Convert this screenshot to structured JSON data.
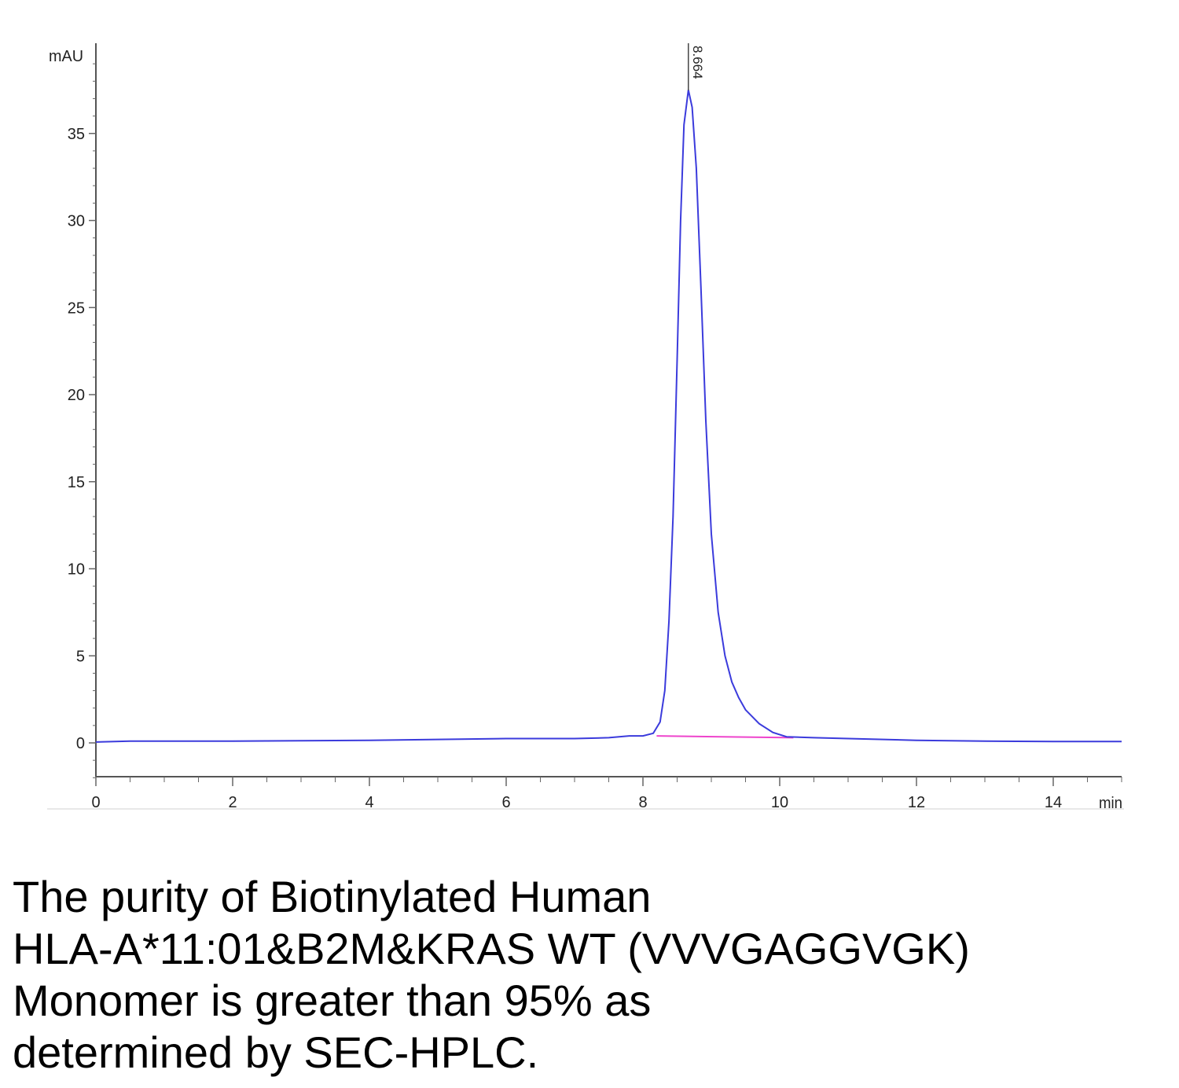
{
  "chart_data": {
    "type": "line",
    "ylabel": "mAU",
    "xlabel": "min",
    "xlim": [
      0,
      15
    ],
    "ylim": [
      -2,
      40
    ],
    "x_ticks": [
      0,
      2,
      4,
      6,
      8,
      10,
      12,
      14
    ],
    "y_ticks": [
      0,
      5,
      10,
      15,
      20,
      25,
      30,
      35
    ],
    "grid": false,
    "series": [
      {
        "color": "#3b3bdc",
        "points": [
          [
            0.0,
            0.05
          ],
          [
            0.5,
            0.1
          ],
          [
            1.0,
            0.1
          ],
          [
            2.0,
            0.1
          ],
          [
            3.0,
            0.12
          ],
          [
            4.0,
            0.15
          ],
          [
            5.0,
            0.2
          ],
          [
            6.0,
            0.25
          ],
          [
            7.0,
            0.25
          ],
          [
            7.5,
            0.3
          ],
          [
            7.8,
            0.4
          ],
          [
            8.0,
            0.4
          ],
          [
            8.15,
            0.55
          ],
          [
            8.25,
            1.2
          ],
          [
            8.32,
            3.0
          ],
          [
            8.38,
            7.0
          ],
          [
            8.44,
            13.0
          ],
          [
            8.5,
            22.0
          ],
          [
            8.55,
            30.0
          ],
          [
            8.6,
            35.5
          ],
          [
            8.664,
            37.5
          ],
          [
            8.72,
            36.5
          ],
          [
            8.78,
            33.0
          ],
          [
            8.85,
            26.0
          ],
          [
            8.92,
            18.5
          ],
          [
            9.0,
            12.0
          ],
          [
            9.1,
            7.5
          ],
          [
            9.2,
            5.0
          ],
          [
            9.3,
            3.5
          ],
          [
            9.4,
            2.6
          ],
          [
            9.5,
            1.9
          ],
          [
            9.7,
            1.1
          ],
          [
            9.9,
            0.6
          ],
          [
            10.1,
            0.35
          ],
          [
            10.5,
            0.3
          ],
          [
            11.0,
            0.25
          ],
          [
            12.0,
            0.15
          ],
          [
            13.0,
            0.1
          ],
          [
            14.0,
            0.08
          ],
          [
            15.0,
            0.08
          ]
        ]
      }
    ],
    "baseline": {
      "color": "#ee44cc",
      "x": [
        8.2,
        10.2
      ],
      "y": [
        0.4,
        0.3
      ]
    },
    "annotations": [
      {
        "x": 8.664,
        "text": "8.664"
      }
    ]
  },
  "caption": {
    "line1": "The purity of Biotinylated Human",
    "line2": "HLA-A*11:01&B2M&KRAS WT (VVVGAGGVGK)",
    "line3": "Monomer is greater than 95% as",
    "line4": "determined by SEC-HPLC."
  }
}
